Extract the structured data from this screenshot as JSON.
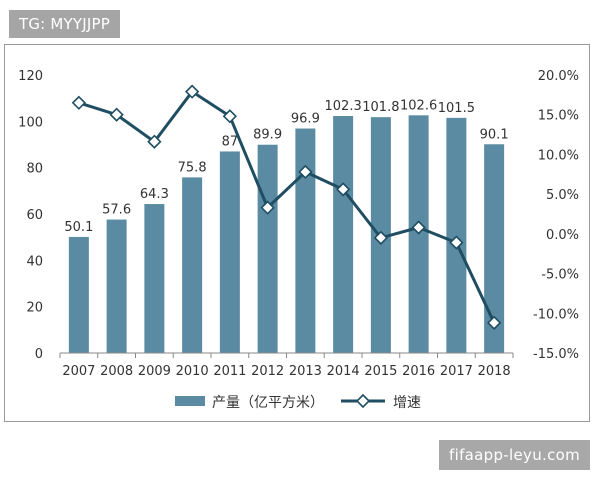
{
  "watermarks": {
    "top_left": "TG: MYYJJPP",
    "bottom_right": "fifaapp-leyu.com"
  },
  "colors": {
    "bar": "#5b8ba3",
    "line": "#1f4e62",
    "marker_fill": "#ffffff",
    "axis": "#888888",
    "text": "#333333"
  },
  "chart_data": {
    "type": "bar+line",
    "categories": [
      "2007",
      "2008",
      "2009",
      "2010",
      "2011",
      "2012",
      "2013",
      "2014",
      "2015",
      "2016",
      "2017",
      "2018"
    ],
    "series": [
      {
        "name": "产量（亿平方米）",
        "type": "bar",
        "axis": "left",
        "values": [
          50.1,
          57.6,
          64.3,
          75.8,
          87,
          89.9,
          96.9,
          102.3,
          101.8,
          102.6,
          101.5,
          90.1
        ],
        "labels": [
          "50.1",
          "57.6",
          "64.3",
          "75.8",
          "87",
          "89.9",
          "96.9",
          "102.3",
          "101.8",
          "102.6",
          "101.5",
          "90.1"
        ]
      },
      {
        "name": "增速",
        "type": "line",
        "axis": "right",
        "values": [
          16.5,
          15.0,
          11.6,
          17.9,
          14.8,
          3.3,
          7.8,
          5.6,
          -0.5,
          0.8,
          -1.1,
          -11.2
        ]
      }
    ],
    "y_left": {
      "min": 0,
      "max": 120,
      "ticks": [
        "0",
        "20",
        "40",
        "60",
        "80",
        "100",
        "120"
      ]
    },
    "y_right": {
      "min": -15,
      "max": 20,
      "ticks": [
        "-15.0%",
        "-10.0%",
        "-5.0%",
        "0.0%",
        "5.0%",
        "10.0%",
        "15.0%",
        "20.0%"
      ]
    },
    "legend": {
      "position": "bottom",
      "items": [
        "产量（亿平方米）",
        "增速"
      ]
    },
    "grid": false
  }
}
